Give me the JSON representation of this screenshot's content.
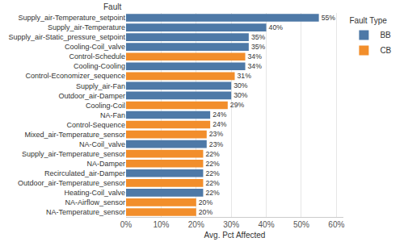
{
  "chart_data": {
    "type": "bar",
    "orientation": "horizontal",
    "y_label": "Fault",
    "x_label": "Avg. Pct Affected",
    "legend_title": "Fault Type",
    "legend": "upper right",
    "data_labels": true,
    "grid": true,
    "categories": [
      "Supply_air-Temperature_setpoint",
      "Supply_air-Temperature",
      "Supply_air-Static_pressure_setpoint",
      "Cooling-Coil_valve",
      "Control-Schedule",
      "Cooling-Cooling",
      "Control-Economizer_sequence",
      "Supply_air-Fan",
      "Outdoor_air-Damper",
      "Cooling-Coil",
      "NA-Fan",
      "Control-Sequence",
      "Mixed_air-Temperature_sensor",
      "NA-Coil_valve",
      "Supply_air-Temperature_sensor",
      "NA-Damper",
      "Recirculated_air-Damper",
      "Outdoor_air-Temperature_sensor",
      "Heating-Coil_valve",
      "NA-Airflow_sensor",
      "NA-Temperature_sensor"
    ],
    "series": [
      {
        "name": "BB",
        "color": "#4e79a7",
        "values": [
          55,
          40,
          35,
          35,
          null,
          34,
          null,
          30,
          30,
          null,
          24,
          null,
          null,
          23,
          null,
          null,
          22,
          null,
          22,
          null,
          null
        ],
        "value_labels": [
          "55%",
          "40%",
          "35%",
          "35%",
          null,
          "34%",
          null,
          "30%",
          "30%",
          null,
          "24%",
          null,
          null,
          "23%",
          null,
          null,
          "22%",
          null,
          "22%",
          null,
          null
        ]
      },
      {
        "name": "CB",
        "color": "#f28e2b",
        "values": [
          null,
          null,
          null,
          null,
          34,
          null,
          31,
          null,
          null,
          29,
          null,
          24,
          23,
          null,
          22,
          22,
          null,
          22,
          null,
          20,
          20
        ],
        "value_labels": [
          null,
          null,
          null,
          null,
          "34%",
          null,
          "31%",
          null,
          null,
          "29%",
          null,
          "24%",
          "23%",
          null,
          "22%",
          "22%",
          null,
          "22%",
          null,
          "20%",
          "20%"
        ]
      }
    ],
    "xlim": [
      0,
      62
    ],
    "xticks": [
      {
        "value": 0,
        "label": "0%"
      },
      {
        "value": 10,
        "label": "10%"
      },
      {
        "value": 20,
        "label": "20%"
      },
      {
        "value": 30,
        "label": "30%"
      },
      {
        "value": 40,
        "label": "40%"
      },
      {
        "value": 50,
        "label": "50%"
      },
      {
        "value": 60,
        "label": "60%"
      }
    ]
  }
}
